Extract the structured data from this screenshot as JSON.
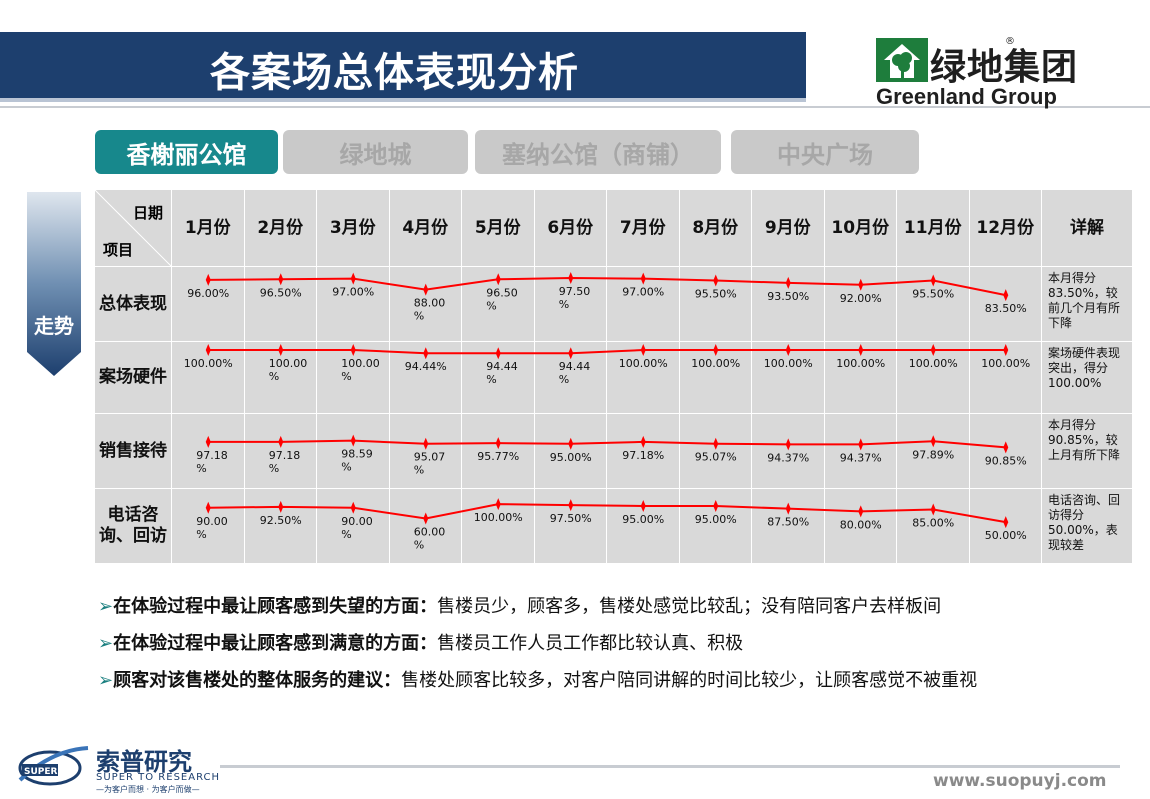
{
  "title": "各案场总体表现分析",
  "logo": {
    "cn": "绿地集团",
    "en": "Greenland Group",
    "mark": "®"
  },
  "tabs": [
    {
      "label": "香榭丽公馆",
      "active": true
    },
    {
      "label": "绿地城",
      "active": false
    },
    {
      "label": "塞纳公馆（商铺）",
      "active": false
    },
    {
      "label": "中央广场",
      "active": false
    }
  ],
  "side_label": "走势",
  "table": {
    "corner_top": "日期",
    "corner_bottom": "项目",
    "detail_header": "详解"
  },
  "chart_data": {
    "type": "line",
    "categories": [
      "1月份",
      "2月份",
      "3月份",
      "4月份",
      "5月份",
      "6月份",
      "7月份",
      "8月份",
      "9月份",
      "10月份",
      "11月份",
      "12月份"
    ],
    "series": [
      {
        "name": "总体表现",
        "values": [
          96.0,
          96.5,
          97.0,
          88.0,
          96.5,
          97.5,
          97.0,
          95.5,
          93.5,
          92.0,
          95.5,
          83.5
        ],
        "labels": [
          "96.00%",
          "96.50%",
          "97.00%",
          "88.00 %",
          "96.50 %",
          "97.50 %",
          "97.00%",
          "95.50%",
          "93.50%",
          "92.00%",
          "95.50%",
          "83.50%"
        ],
        "ylim": [
          50,
          100
        ],
        "note": "本月得分83.50%，较前几个月有所下降"
      },
      {
        "name": "案场硬件",
        "values": [
          100.0,
          100.0,
          100.0,
          94.44,
          94.44,
          94.44,
          100.0,
          100.0,
          100.0,
          100.0,
          100.0,
          100.0
        ],
        "labels": [
          "100.00%",
          "100.00 %",
          "100.00 %",
          "94.44%",
          "94.44 %",
          "94.44 %",
          "100.00%",
          "100.00%",
          "100.00%",
          "100.00%",
          "100.00%",
          "100.00%"
        ],
        "ylim": [
          0,
          100
        ],
        "note": "案场硬件表现突出，得分100.00%"
      },
      {
        "name": "销售接待",
        "values": [
          97.18,
          97.18,
          98.59,
          95.07,
          95.77,
          95.0,
          97.18,
          95.07,
          94.37,
          94.37,
          97.89,
          90.85
        ],
        "labels": [
          "97.18 %",
          "97.18 %",
          "98.59 %",
          "95.07 %",
          "95.77%",
          "95.00%",
          "97.18%",
          "95.07%",
          "94.37%",
          "94.37%",
          "97.89%",
          "90.85%"
        ],
        "ylim": [
          50,
          120
        ],
        "note": "本月得分90.85%，较上月有所下降"
      },
      {
        "name": "电话咨询、回访",
        "values": [
          90.0,
          92.5,
          90.0,
          60.0,
          100.0,
          97.5,
          95.0,
          95.0,
          87.5,
          80.0,
          85.0,
          50.0
        ],
        "labels": [
          "90.00 %",
          "92.50%",
          "90.00 %",
          "60.00 %",
          "100.00%",
          "97.50%",
          "95.00%",
          "95.00%",
          "87.50%",
          "80.00%",
          "85.00%",
          "50.00%"
        ],
        "ylim": [
          -50,
          120
        ],
        "note": "电话咨询、回访得分50.00%，表现较差"
      }
    ],
    "line_color": "#ff0000"
  },
  "bullets": [
    {
      "arrow": "➢",
      "head": "在体验过程中最让顾客感到失望的方面：",
      "text": "售楼员少，顾客多，售楼处感觉比较乱；没有陪同客户去样板间"
    },
    {
      "arrow": "➢",
      "head": "在体验过程中最让顾客感到满意的方面：",
      "text": "售楼员工作人员工作都比较认真、积极"
    },
    {
      "arrow": "➢",
      "head": "顾客对该售楼处的整体服务的建议：",
      "text": "售楼处顾客比较多，对客户陪同讲解的时间比较少，让顾客感觉不被重视"
    }
  ],
  "footer": {
    "company_cn": "索普研究",
    "company_en": "SUPER TO RESEARCH",
    "badge": "SUPER",
    "slogan": "—为客户而想 · 为客户而做—",
    "url": "www.suopuyj.com"
  },
  "colors": {
    "title_bg": "#1d3f6e",
    "tab_active": "#17888c",
    "tab_inactive": "#c9c9c9",
    "cell_bg": "#d9d9d9",
    "logo_green": "#1e7d3c"
  }
}
